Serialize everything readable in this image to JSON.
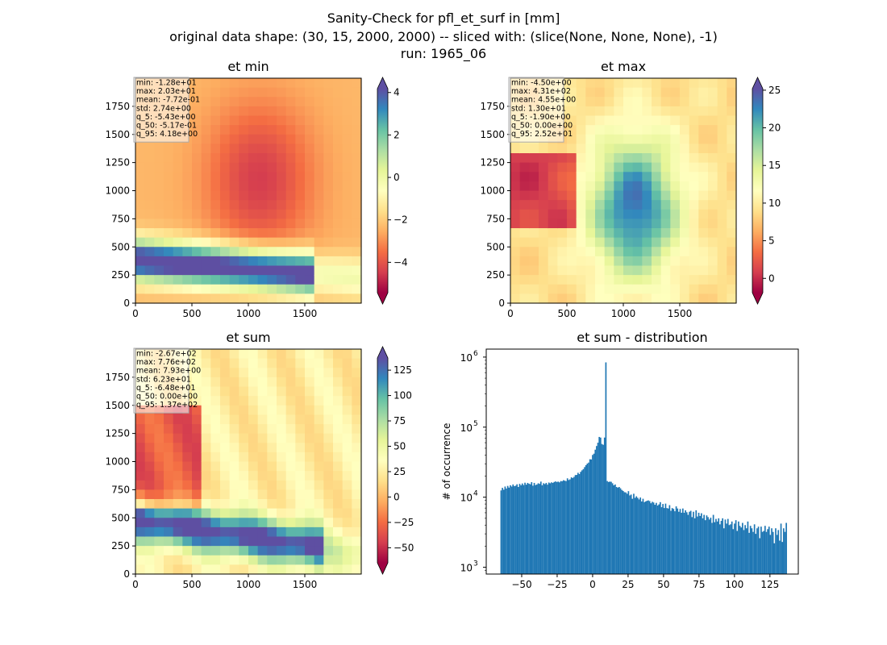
{
  "figure": {
    "title_line1": "Sanity-Check for pfl_et_surf in [mm]",
    "title_line2": "original data shape: (30, 15, 2000, 2000) -- sliced with: (slice(None, None, None), -1)",
    "title_line3": "run: 1965_06"
  },
  "chart_data": [
    {
      "type": "heatmap",
      "title": "et min",
      "xlim": [
        0,
        2000
      ],
      "ylim": [
        0,
        2000
      ],
      "xticks": [
        0,
        500,
        1000,
        1500
      ],
      "yticks": [
        0,
        250,
        500,
        750,
        1000,
        1250,
        1500,
        1750
      ],
      "colormap": "Spectral",
      "colorbar": {
        "range": [
          -5.43,
          4.18
        ],
        "ticks": [
          4,
          2,
          0,
          -2,
          -4
        ],
        "extend": "both"
      },
      "stats": [
        "min: -1.28e+01",
        "max: 2.03e+01",
        "mean: -7.72e-01",
        "std: 2.74e+00",
        "q_5: -5.43e+00",
        "q_50: -5.17e-01",
        "q_95: 4.18e+00"
      ]
    },
    {
      "type": "heatmap",
      "title": "et max",
      "xlim": [
        0,
        2000
      ],
      "ylim": [
        0,
        2000
      ],
      "xticks": [
        0,
        500,
        1000,
        1500
      ],
      "yticks": [
        0,
        250,
        500,
        750,
        1000,
        1250,
        1500,
        1750
      ],
      "colormap": "Spectral",
      "colorbar": {
        "range": [
          -1.9,
          25.2
        ],
        "ticks": [
          25,
          20,
          15,
          10,
          5,
          0
        ],
        "extend": "both"
      },
      "stats": [
        "min: -4.50e+00",
        "max: 4.31e+02",
        "mean: 4.55e+00",
        "std: 1.30e+01",
        "q_5: -1.90e+00",
        "q_50: 0.00e+00",
        "q_95: 2.52e+01"
      ]
    },
    {
      "type": "heatmap",
      "title": "et sum",
      "xlim": [
        0,
        2000
      ],
      "ylim": [
        0,
        2000
      ],
      "xticks": [
        0,
        500,
        1000,
        1500
      ],
      "yticks": [
        0,
        250,
        500,
        750,
        1000,
        1250,
        1500,
        1750
      ],
      "colormap": "Spectral",
      "colorbar": {
        "range": [
          -64.8,
          137
        ],
        "ticks": [
          125,
          100,
          75,
          50,
          25,
          0,
          -25,
          -50
        ],
        "extend": "both"
      },
      "stats": [
        "min: -2.67e+02",
        "max: 7.76e+02",
        "mean: 7.93e+00",
        "std: 6.23e+01",
        "q_5: -6.48e+01",
        "q_50: 0.00e+00",
        "q_95: 1.37e+02"
      ]
    },
    {
      "type": "bar",
      "title": "et sum - distribution",
      "xlabel": "",
      "ylabel": "# of occurrence",
      "yscale": "log",
      "xlim": [
        -75,
        145
      ],
      "ylim": [
        800,
        1300000
      ],
      "xticks": [
        -50,
        -25,
        0,
        25,
        50,
        75,
        100,
        125
      ],
      "yticks": [
        1000,
        10000,
        100000,
        1000000
      ],
      "ytick_labels": [
        [
          "10",
          "3"
        ],
        [
          "10",
          "4"
        ],
        [
          "10",
          "5"
        ],
        [
          "10",
          "6"
        ]
      ],
      "color": "#1f77b4",
      "x_range": [
        -65,
        137
      ],
      "bin_counts": [
        12500,
        13600,
        12800,
        14200,
        13300,
        14500,
        13700,
        14800,
        14200,
        15200,
        14400,
        14600,
        15300,
        14000,
        15500,
        14800,
        15700,
        14900,
        16100,
        15100,
        16000,
        15600,
        15300,
        16400,
        14600,
        16000,
        14900,
        15200,
        15800,
        15500,
        16700,
        14800,
        15800,
        15400,
        16000,
        15100,
        16200,
        15800,
        16300,
        16000,
        16500,
        16800,
        16500,
        16700,
        16300,
        17000,
        16900,
        17500,
        17200,
        17000,
        18600,
        17600,
        18000,
        19200,
        18800,
        19500,
        20700,
        20800,
        22300,
        21400,
        23000,
        24200,
        25200,
        26900,
        28700,
        30200,
        31200,
        34800,
        34600,
        40100,
        41800,
        47700,
        53800,
        60000,
        72500,
        71000,
        57500,
        56000,
        71000,
        840000,
        17000,
        16500,
        16700,
        16600,
        15800,
        14800,
        15200,
        14000,
        13700,
        14000,
        13400,
        12700,
        12300,
        11800,
        11700,
        11200,
        12200,
        10600,
        10900,
        9500,
        11200,
        9800,
        10300,
        9800,
        9300,
        9900,
        8700,
        9500,
        8500,
        8700,
        8900,
        9000,
        8800,
        8200,
        8600,
        8400,
        7800,
        8300,
        7600,
        7900,
        8500,
        7200,
        8000,
        7000,
        8100,
        7000,
        6900,
        7700,
        6400,
        7000,
        6800,
        6300,
        7400,
        6900,
        6200,
        6800,
        6000,
        6900,
        6000,
        6500,
        6100,
        5600,
        6200,
        6400,
        5200,
        6200,
        5000,
        6500,
        5300,
        6000,
        5400,
        5900,
        5000,
        5600,
        4700,
        5500,
        5200,
        4800,
        5100,
        4300,
        5600,
        4400,
        4900,
        4500,
        5000,
        4100,
        4600,
        5000,
        3600,
        4800,
        4200,
        4900,
        4000,
        4100,
        4500,
        3500,
        4200,
        4700,
        3300,
        4500,
        3900,
        3700,
        4300,
        3400,
        4000,
        3600,
        4500,
        3100,
        3900,
        3600,
        3200,
        4100,
        3000,
        3600,
        3800,
        2600,
        3800,
        3200,
        3300,
        3900,
        3200,
        3500,
        3800,
        2900,
        3600,
        3200,
        2200,
        3600,
        2900,
        3400,
        2400,
        4200,
        2300,
        3600,
        3200,
        4300
      ]
    }
  ]
}
